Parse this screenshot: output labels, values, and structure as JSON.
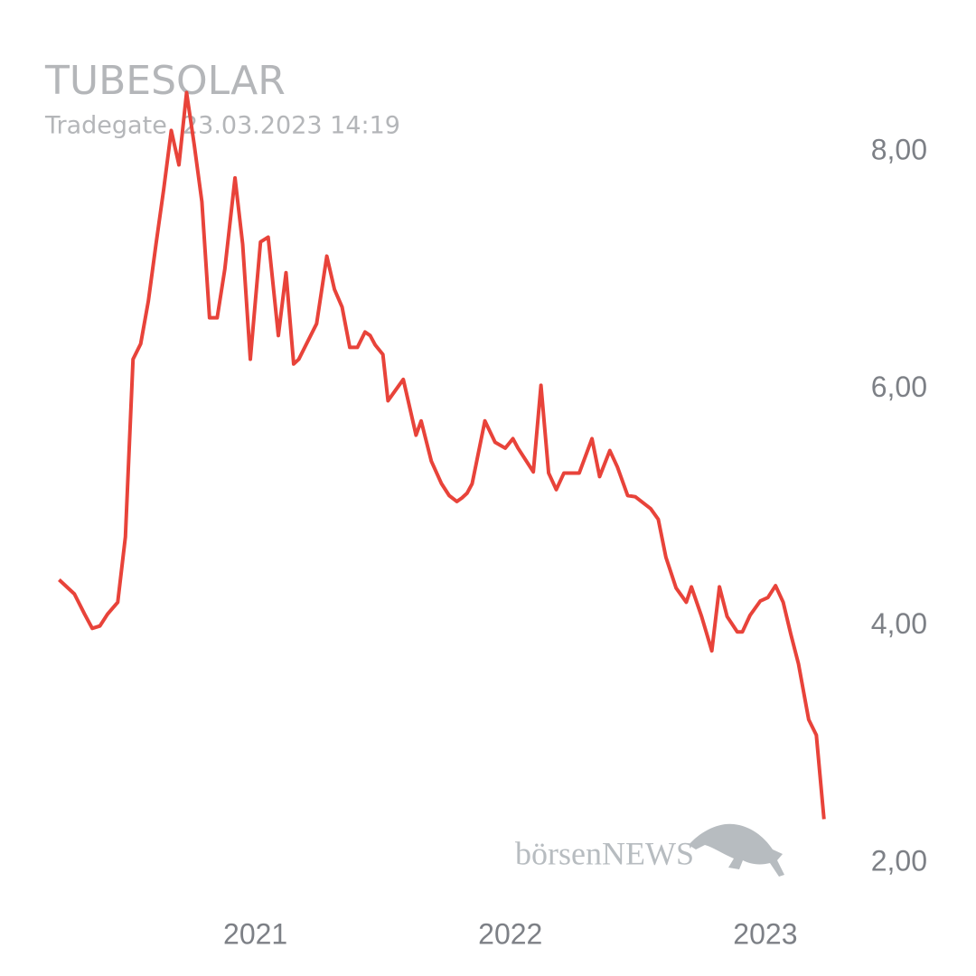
{
  "chart_data": {
    "type": "line",
    "title": "TUBESOLAR",
    "subtitle": "Tradegate, 23.03.2023 14:19",
    "watermark": "börsenNEWS",
    "x": [
      2020.23,
      2020.29,
      2020.33,
      2020.36,
      2020.39,
      2020.42,
      2020.46,
      2020.49,
      2020.52,
      2020.55,
      2020.58,
      2020.61,
      2020.64,
      2020.67,
      2020.7,
      2020.73,
      2020.76,
      2020.79,
      2020.82,
      2020.85,
      2020.88,
      2020.92,
      2020.95,
      2020.98,
      2021.02,
      2021.05,
      2021.09,
      2021.12,
      2021.15,
      2021.17,
      2021.24,
      2021.28,
      2021.31,
      2021.34,
      2021.37,
      2021.4,
      2021.43,
      2021.45,
      2021.47,
      2021.5,
      2021.52,
      2021.58,
      2021.63,
      2021.65,
      2021.69,
      2021.73,
      2021.76,
      2021.79,
      2021.81,
      2021.83,
      2021.85,
      2021.9,
      2021.94,
      2021.98,
      2022.01,
      2022.03,
      2022.09,
      2022.12,
      2022.15,
      2022.18,
      2022.21,
      2022.27,
      2022.32,
      2022.35,
      2022.39,
      2022.42,
      2022.46,
      2022.49,
      2022.55,
      2022.58,
      2022.61,
      2022.65,
      2022.69,
      2022.71,
      2022.75,
      2022.79,
      2022.82,
      2022.85,
      2022.89,
      2022.91,
      2022.94,
      2022.98,
      2023.01,
      2023.04,
      2023.07,
      2023.1,
      2023.13,
      2023.17,
      2023.2,
      2023.23
    ],
    "series": [
      {
        "name": "TUBESOLAR",
        "color": "#e8433a",
        "values": [
          4.39,
          4.27,
          4.1,
          3.98,
          4.0,
          4.1,
          4.2,
          4.75,
          6.25,
          6.38,
          6.74,
          7.22,
          7.68,
          8.18,
          7.89,
          8.5,
          8.06,
          7.58,
          6.6,
          6.6,
          7.01,
          7.78,
          7.22,
          6.25,
          7.24,
          7.28,
          6.45,
          6.98,
          6.21,
          6.25,
          6.55,
          7.12,
          6.84,
          6.69,
          6.35,
          6.35,
          6.48,
          6.45,
          6.37,
          6.29,
          5.9,
          6.08,
          5.61,
          5.73,
          5.39,
          5.2,
          5.1,
          5.05,
          5.08,
          5.12,
          5.2,
          5.73,
          5.55,
          5.5,
          5.58,
          5.5,
          5.3,
          6.03,
          5.29,
          5.15,
          5.29,
          5.29,
          5.58,
          5.26,
          5.48,
          5.34,
          5.1,
          5.09,
          4.99,
          4.9,
          4.58,
          4.32,
          4.2,
          4.33,
          4.08,
          3.79,
          4.33,
          4.08,
          3.95,
          3.95,
          4.09,
          4.21,
          4.24,
          4.34,
          4.2,
          3.93,
          3.68,
          3.21,
          3.08,
          2.37
        ]
      }
    ],
    "xlim": [
      2020.14,
      2023.33
    ],
    "xticks": [
      2021,
      2022,
      2023
    ],
    "ylim": [
      1.7,
      8.6
    ],
    "yticks": [
      {
        "value": 2,
        "label": "2,00"
      },
      {
        "value": 4,
        "label": "4,00"
      },
      {
        "value": 6,
        "label": "6,00"
      },
      {
        "value": 8,
        "label": "8,00"
      }
    ],
    "grid": false
  }
}
